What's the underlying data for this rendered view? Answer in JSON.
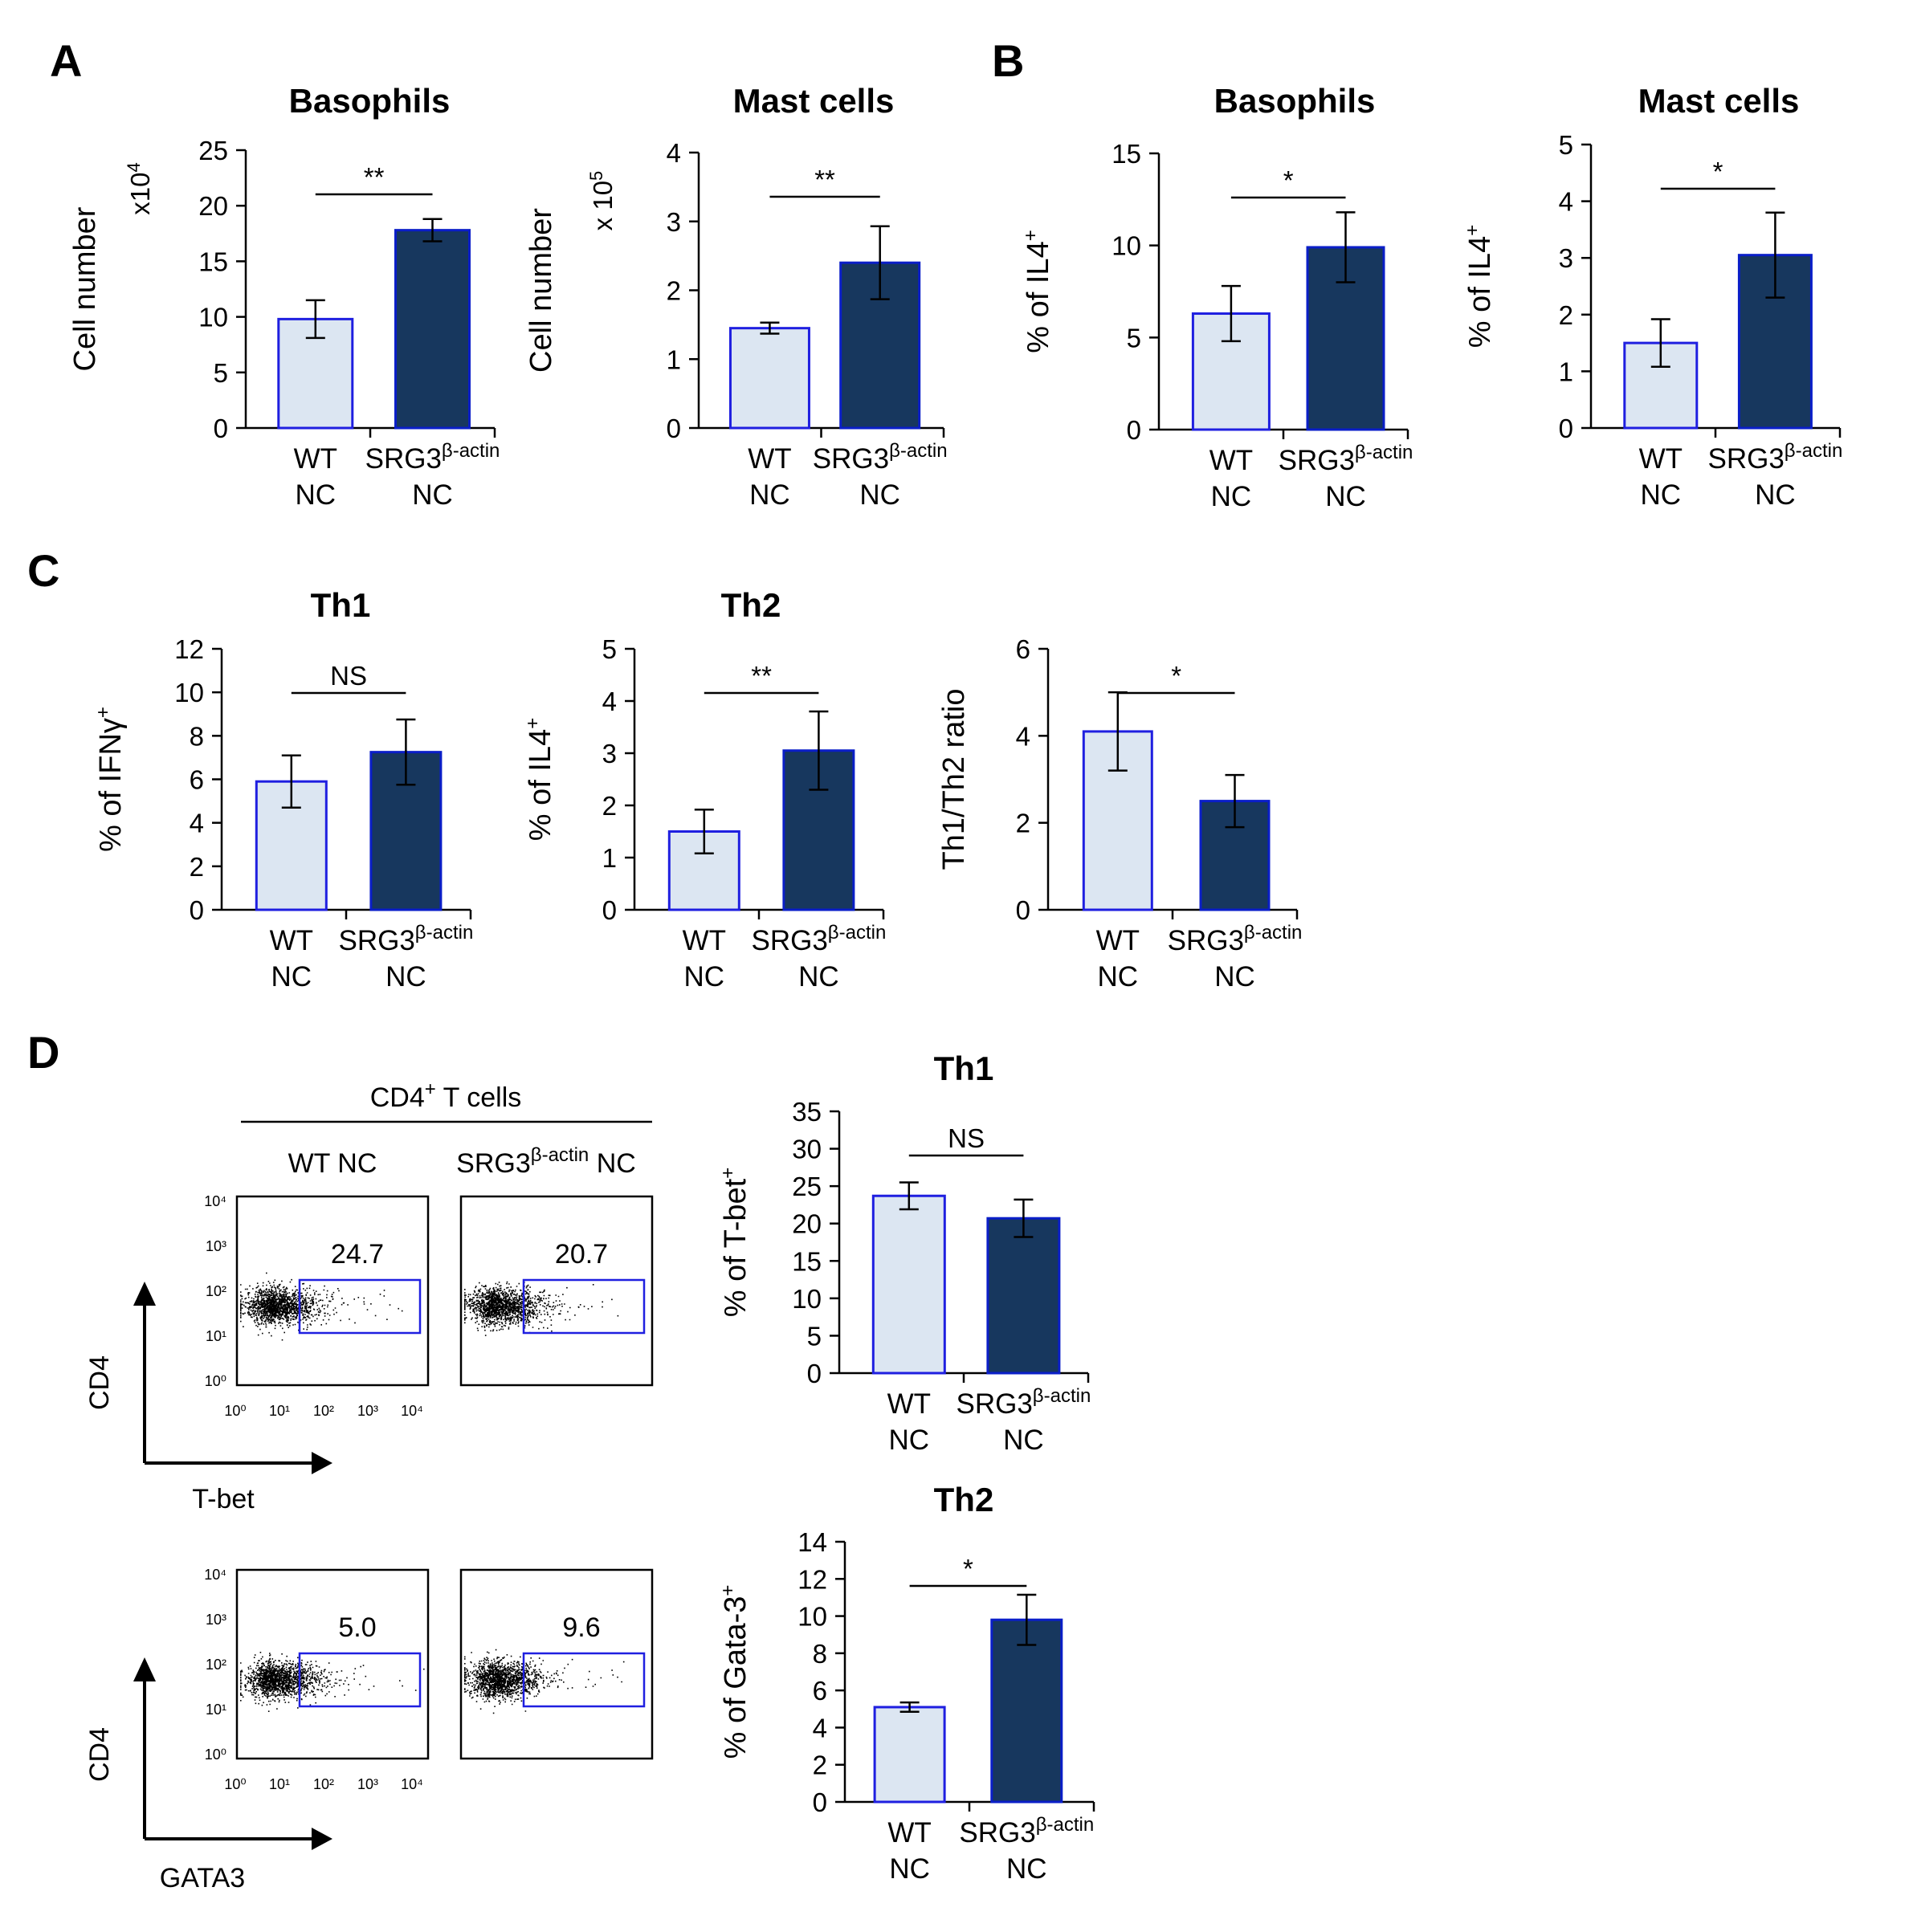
{
  "figure": {
    "panels": [
      "A",
      "B",
      "C",
      "D"
    ],
    "colors": {
      "wt_fill": "#dce6f2",
      "wt_edge": "#1f1fe0",
      "ko_fill": "#17375e",
      "ko_edge": "#0a1ec8",
      "gate": "#1f1fe0"
    }
  },
  "chart_data": [
    {
      "id": "a1",
      "panel": "A",
      "type": "bar",
      "title": "Basophils",
      "ylabel": "Cell number",
      "unit": "x10^4",
      "ylim": [
        0,
        25
      ],
      "yticks": [
        0,
        5,
        10,
        15,
        20,
        25
      ],
      "categories": [
        {
          "top": "WT",
          "bottom": "NC",
          "sup": ""
        },
        {
          "top": "SRG3",
          "bottom": "NC",
          "sup": "β-actin"
        }
      ],
      "values": [
        9.8,
        17.8
      ],
      "errors": [
        1.7,
        1.0
      ],
      "significance": "**"
    },
    {
      "id": "a2",
      "panel": "A",
      "type": "bar",
      "title": "Mast cells",
      "ylabel": "Cell number",
      "unit": "x 10^5",
      "ylim": [
        0,
        4
      ],
      "yticks": [
        0,
        1,
        2,
        3,
        4
      ],
      "categories": [
        {
          "top": "WT",
          "bottom": "NC",
          "sup": ""
        },
        {
          "top": "SRG3",
          "bottom": "NC",
          "sup": "β-actin"
        }
      ],
      "values": [
        1.45,
        2.4
      ],
      "errors": [
        0.08,
        0.53
      ],
      "significance": "**"
    },
    {
      "id": "b1",
      "panel": "B",
      "type": "bar",
      "title": "Basophils",
      "ylabel": "% of IL4+",
      "ylim": [
        0,
        15
      ],
      "yticks": [
        0,
        5,
        10,
        15
      ],
      "categories": [
        {
          "top": "WT",
          "bottom": "NC",
          "sup": ""
        },
        {
          "top": "SRG3",
          "bottom": "NC",
          "sup": "β-actin"
        }
      ],
      "values": [
        6.3,
        9.9
      ],
      "errors": [
        1.5,
        1.9
      ],
      "significance": "*"
    },
    {
      "id": "b2",
      "panel": "B",
      "type": "bar",
      "title": "Mast cells",
      "ylabel": "% of IL4+",
      "ylim": [
        0,
        5
      ],
      "yticks": [
        0,
        1,
        2,
        3,
        4,
        5
      ],
      "categories": [
        {
          "top": "WT",
          "bottom": "NC",
          "sup": ""
        },
        {
          "top": "SRG3",
          "bottom": "NC",
          "sup": "β-actin"
        }
      ],
      "values": [
        1.5,
        3.05
      ],
      "errors": [
        0.42,
        0.75
      ],
      "significance": "*"
    },
    {
      "id": "c1",
      "panel": "C",
      "type": "bar",
      "title": "Th1",
      "ylabel": "% of IFNγ+",
      "ylim": [
        0,
        12
      ],
      "yticks": [
        0,
        2,
        4,
        6,
        8,
        10,
        12
      ],
      "categories": [
        {
          "top": "WT",
          "bottom": "NC",
          "sup": ""
        },
        {
          "top": "SRG3",
          "bottom": "NC",
          "sup": "β-actin"
        }
      ],
      "values": [
        5.9,
        7.25
      ],
      "errors": [
        1.2,
        1.5
      ],
      "significance": "NS"
    },
    {
      "id": "c2",
      "panel": "C",
      "type": "bar",
      "title": "Th2",
      "ylabel": "% of IL4+",
      "ylim": [
        0,
        5
      ],
      "yticks": [
        0,
        1,
        2,
        3,
        4,
        5
      ],
      "categories": [
        {
          "top": "WT",
          "bottom": "NC",
          "sup": ""
        },
        {
          "top": "SRG3",
          "bottom": "NC",
          "sup": "β-actin"
        }
      ],
      "values": [
        1.5,
        3.05
      ],
      "errors": [
        0.42,
        0.75
      ],
      "significance": "**"
    },
    {
      "id": "c3",
      "panel": "C",
      "type": "bar",
      "title": "",
      "ylabel": "Th1/Th2 ratio",
      "ylim": [
        0,
        6
      ],
      "yticks": [
        0,
        2,
        4,
        6
      ],
      "categories": [
        {
          "top": "WT",
          "bottom": "NC",
          "sup": ""
        },
        {
          "top": "SRG3",
          "bottom": "NC",
          "sup": "β-actin"
        }
      ],
      "values": [
        4.1,
        2.5
      ],
      "errors": [
        0.9,
        0.6
      ],
      "significance": "*"
    },
    {
      "id": "d1",
      "panel": "D",
      "type": "bar",
      "title": "Th1",
      "ylabel": "% of T-bet+",
      "ylim": [
        0,
        35
      ],
      "yticks": [
        0,
        5,
        10,
        15,
        20,
        25,
        30,
        35
      ],
      "categories": [
        {
          "top": "WT",
          "bottom": "NC",
          "sup": ""
        },
        {
          "top": "SRG3",
          "bottom": "NC",
          "sup": "β-actin"
        }
      ],
      "values": [
        23.7,
        20.7
      ],
      "errors": [
        1.8,
        2.5
      ],
      "significance": "NS"
    },
    {
      "id": "d2",
      "panel": "D",
      "type": "bar",
      "title": "Th2",
      "ylabel": "% of Gata-3+",
      "ylim": [
        0,
        14
      ],
      "yticks": [
        0,
        2,
        4,
        6,
        8,
        10,
        12,
        14
      ],
      "categories": [
        {
          "top": "WT",
          "bottom": "NC",
          "sup": ""
        },
        {
          "top": "SRG3",
          "bottom": "NC",
          "sup": "β-actin"
        }
      ],
      "values": [
        5.1,
        9.8
      ],
      "errors": [
        0.25,
        1.35
      ],
      "significance": "*"
    }
  ],
  "flow": {
    "header": "CD4+ T cells",
    "columns": [
      "WT NC",
      "SRG3β-actin NC"
    ],
    "tick_labels": [
      "10⁰",
      "10¹",
      "10²",
      "10³",
      "10⁴"
    ],
    "rows": [
      {
        "x_label": "T-bet",
        "y_label": "CD4",
        "percentages": [
          "24.7",
          "20.7"
        ]
      },
      {
        "x_label": "GATA3",
        "y_label": "CD4",
        "percentages": [
          "5.0",
          "9.6"
        ]
      }
    ]
  }
}
